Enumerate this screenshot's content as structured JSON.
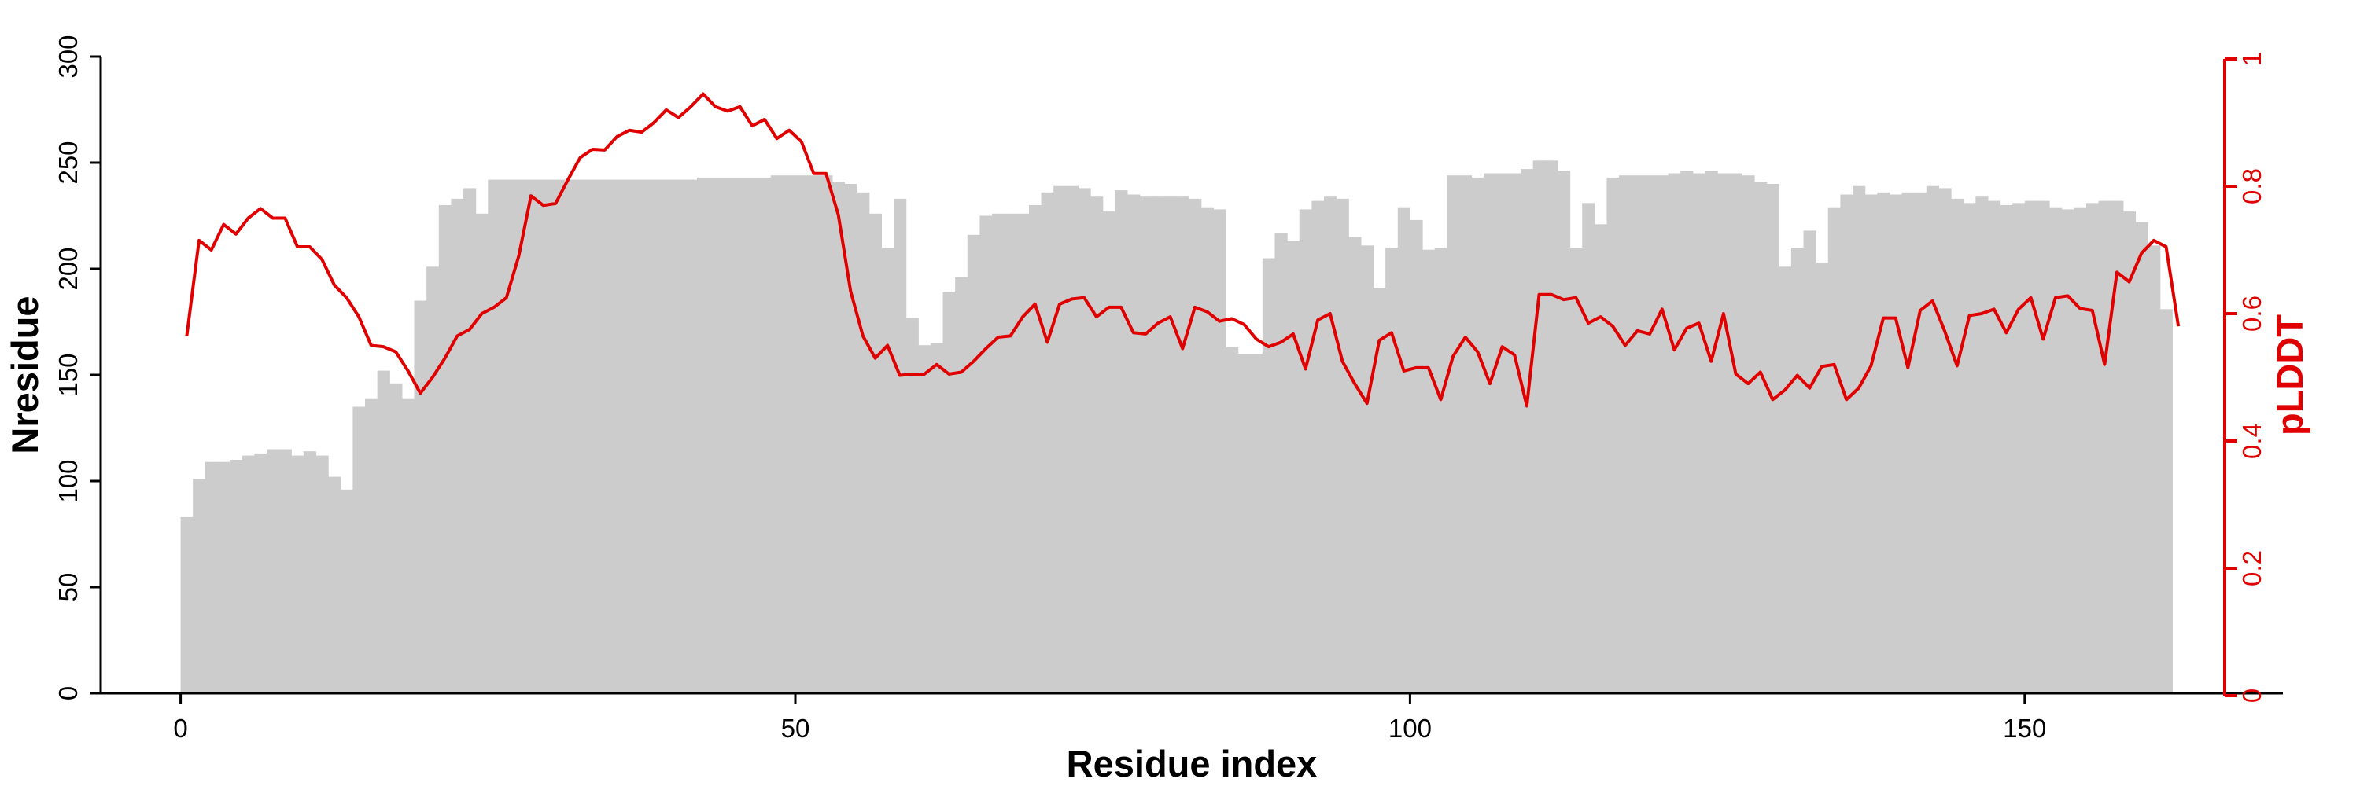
{
  "chart_data": {
    "type": "bar+line",
    "xlabel": "Residue index",
    "ylabel_left": "Nresidue",
    "ylabel_right": "pLDDT",
    "xlim": [
      -6.5,
      171
    ],
    "ylim_left": [
      0,
      300
    ],
    "ylim_right": [
      0,
      1
    ],
    "x_ticks": [
      0,
      50,
      100,
      150
    ],
    "y_ticks_left": [
      0,
      50,
      100,
      150,
      200,
      250,
      300
    ],
    "y_ticks_right": [
      "0",
      "0.2",
      "0.4",
      "0.6",
      "0.8",
      "1"
    ],
    "y_ticks_right_values": [
      0,
      0.2,
      0.4,
      0.6,
      0.8,
      1
    ],
    "colors": {
      "bars": "#cccccc",
      "line": "#e00000",
      "axis": "#000000"
    },
    "series": [
      {
        "kind": "bar",
        "axis": "left",
        "x_start": 0,
        "values": [
          83,
          101,
          109,
          109,
          110,
          112,
          113,
          115,
          115,
          112,
          114,
          112,
          102,
          96,
          135,
          139,
          152,
          146,
          139,
          185,
          201,
          230,
          233,
          238,
          226,
          242,
          242,
          242,
          242,
          242,
          242,
          242,
          242,
          242,
          242,
          242,
          242,
          242,
          242,
          242,
          242,
          242,
          243,
          243,
          243,
          243,
          243,
          243,
          244,
          244,
          244,
          244,
          244,
          241,
          240,
          236,
          226,
          210,
          233,
          177,
          164,
          165,
          189,
          196,
          216,
          225,
          226,
          226,
          226,
          230,
          236,
          239,
          239,
          238,
          234,
          227,
          237,
          235,
          234,
          234,
          234,
          234,
          233,
          229,
          228,
          163,
          160,
          160,
          205,
          217,
          213,
          228,
          232,
          234,
          233,
          215,
          211,
          191,
          210,
          229,
          223,
          209,
          210,
          244,
          244,
          243,
          245,
          245,
          245,
          247,
          251,
          251,
          246,
          210,
          231,
          221,
          243,
          244,
          244,
          244,
          244,
          245,
          246,
          245,
          246,
          245,
          245,
          244,
          241,
          240,
          201,
          210,
          218,
          203,
          229,
          235,
          239,
          235,
          236,
          235,
          236,
          236,
          239,
          238,
          233,
          231,
          234,
          232,
          230,
          231,
          232,
          232,
          229,
          228,
          229,
          231,
          232,
          232,
          227,
          222,
          211,
          181
        ]
      },
      {
        "kind": "line",
        "axis": "right",
        "x_start": 0.5,
        "values": [
          0.565,
          0.715,
          0.7,
          0.74,
          0.725,
          0.75,
          0.765,
          0.75,
          0.75,
          0.705,
          0.705,
          0.685,
          0.645,
          0.625,
          0.595,
          0.55,
          0.548,
          0.54,
          0.51,
          0.475,
          0.5,
          0.53,
          0.565,
          0.575,
          0.6,
          0.61,
          0.625,
          0.69,
          0.785,
          0.77,
          0.773,
          0.81,
          0.845,
          0.858,
          0.857,
          0.878,
          0.888,
          0.885,
          0.9,
          0.92,
          0.908,
          0.925,
          0.945,
          0.925,
          0.918,
          0.925,
          0.895,
          0.905,
          0.875,
          0.888,
          0.87,
          0.82,
          0.82,
          0.755,
          0.635,
          0.565,
          0.53,
          0.55,
          0.503,
          0.505,
          0.505,
          0.52,
          0.505,
          0.508,
          0.525,
          0.545,
          0.563,
          0.565,
          0.595,
          0.615,
          0.555,
          0.615,
          0.623,
          0.625,
          0.595,
          0.61,
          0.61,
          0.57,
          0.568,
          0.585,
          0.595,
          0.545,
          0.61,
          0.603,
          0.588,
          0.592,
          0.583,
          0.56,
          0.548,
          0.555,
          0.568,
          0.513,
          0.59,
          0.6,
          0.525,
          0.49,
          0.459,
          0.558,
          0.57,
          0.51,
          0.515,
          0.515,
          0.465,
          0.533,
          0.563,
          0.54,
          0.49,
          0.548,
          0.535,
          0.455,
          0.63,
          0.63,
          0.622,
          0.625,
          0.585,
          0.595,
          0.58,
          0.55,
          0.573,
          0.568,
          0.607,
          0.543,
          0.577,
          0.585,
          0.525,
          0.6,
          0.505,
          0.49,
          0.508,
          0.465,
          0.48,
          0.503,
          0.483,
          0.517,
          0.52,
          0.465,
          0.483,
          0.518,
          0.593,
          0.593,
          0.515,
          0.605,
          0.62,
          0.572,
          0.518,
          0.597,
          0.6,
          0.607,
          0.57,
          0.607,
          0.625,
          0.56,
          0.625,
          0.628,
          0.608,
          0.605,
          0.52,
          0.665,
          0.65,
          0.695,
          0.715,
          0.705,
          0.58
        ]
      }
    ]
  }
}
